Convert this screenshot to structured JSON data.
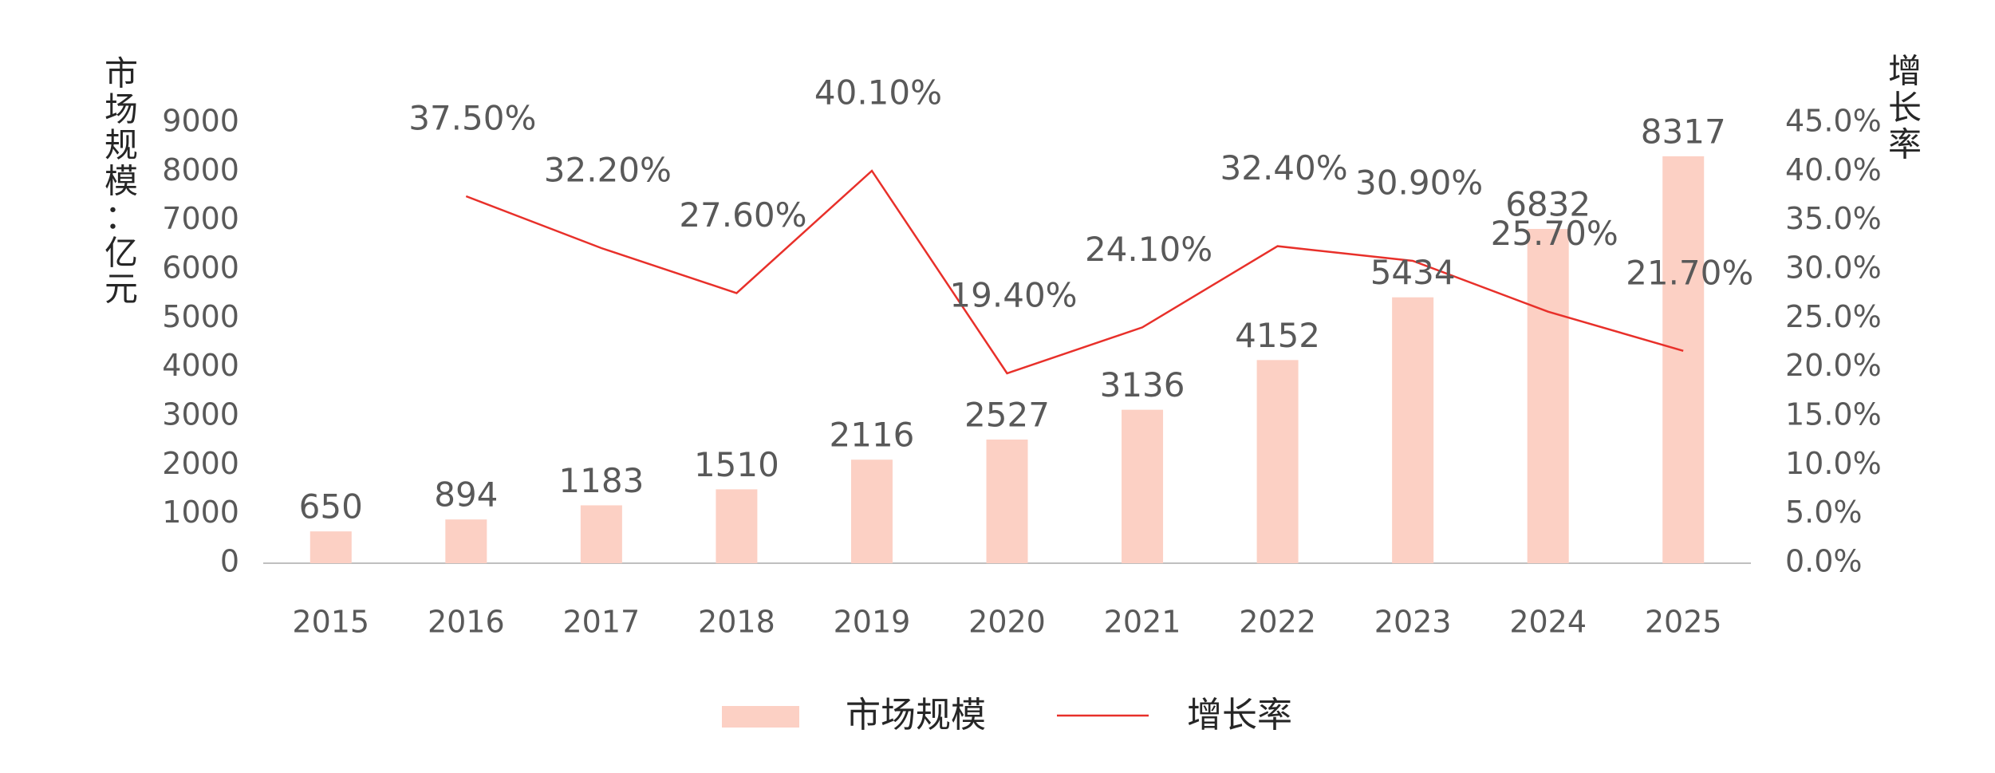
{
  "chart_data": {
    "type": "bar",
    "categories": [
      "2015",
      "2016",
      "2017",
      "2018",
      "2019",
      "2020",
      "2021",
      "2022",
      "2023",
      "2024",
      "2025"
    ],
    "series": [
      {
        "name": "市场规模",
        "type": "bar",
        "axis": "left",
        "color": "#FCD0C4",
        "values": [
          650,
          894,
          1183,
          1510,
          2116,
          2527,
          3136,
          4152,
          5434,
          6832,
          8317
        ],
        "labels": [
          "650",
          "894",
          "1183",
          "1510",
          "2116",
          "2527",
          "3136",
          "4152",
          "5434",
          "6832",
          "8317"
        ]
      },
      {
        "name": "增长率",
        "type": "line",
        "axis": "right",
        "color": "#E8302A",
        "values": [
          null,
          37.5,
          32.2,
          27.6,
          40.1,
          19.4,
          24.1,
          32.4,
          30.9,
          25.7,
          21.7
        ],
        "labels": [
          "",
          "37.50%",
          "32.20%",
          "27.60%",
          "40.10%",
          "19.40%",
          "24.10%",
          "32.40%",
          "30.90%",
          "25.70%",
          "21.70%"
        ]
      }
    ],
    "ylabel": "市场规模：亿元",
    "y2label": "增长率",
    "ylim": [
      0,
      9000
    ],
    "y2lim": [
      0,
      45
    ],
    "yticks": [
      "0",
      "1000",
      "2000",
      "3000",
      "4000",
      "5000",
      "6000",
      "7000",
      "8000",
      "9000"
    ],
    "y2ticks": [
      "0.0%",
      "5.0%",
      "10.0%",
      "15.0%",
      "20.0%",
      "25.0%",
      "30.0%",
      "35.0%",
      "40.0%",
      "45.0%"
    ],
    "grid": false,
    "legend": "bottom-center",
    "legend_items": [
      "市场规模",
      "增长率"
    ]
  }
}
